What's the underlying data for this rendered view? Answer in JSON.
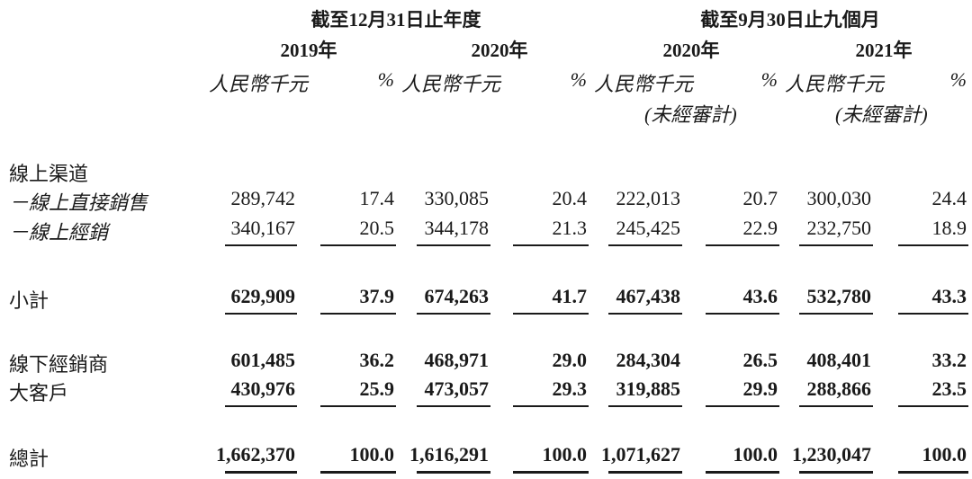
{
  "header": {
    "group1_title": "截至12月31日止年度",
    "group2_title": "截至9月30日止九個月",
    "years": [
      "2019年",
      "2020年",
      "2020年",
      "2021年"
    ],
    "unit": "人民幣千元",
    "pct": "%",
    "unaudited": "(未經審計)"
  },
  "rows": [
    {
      "label": "線上渠道",
      "values": [
        "",
        "",
        "",
        "",
        "",
        "",
        "",
        ""
      ]
    },
    {
      "label": "－線上直接銷售",
      "values": [
        "289,742",
        "17.4",
        "330,085",
        "20.4",
        "222,013",
        "20.7",
        "300,030",
        "24.4"
      ]
    },
    {
      "label": "－線上經銷",
      "values": [
        "340,167",
        "20.5",
        "344,178",
        "21.3",
        "245,425",
        "22.9",
        "232,750",
        "18.9"
      ]
    },
    {
      "label": "小計",
      "values": [
        "629,909",
        "37.9",
        "674,263",
        "41.7",
        "467,438",
        "43.6",
        "532,780",
        "43.3"
      ]
    },
    {
      "label": "線下經銷商",
      "values": [
        "601,485",
        "36.2",
        "468,971",
        "29.0",
        "284,304",
        "26.5",
        "408,401",
        "33.2"
      ]
    },
    {
      "label": "大客戶",
      "values": [
        "430,976",
        "25.9",
        "473,057",
        "29.3",
        "319,885",
        "29.9",
        "288,866",
        "23.5"
      ]
    },
    {
      "label": "總計",
      "values": [
        "1,662,370",
        "100.0",
        "1,616,291",
        "100.0",
        "1,071,627",
        "100.0",
        "1,230,047",
        "100.0"
      ]
    }
  ]
}
